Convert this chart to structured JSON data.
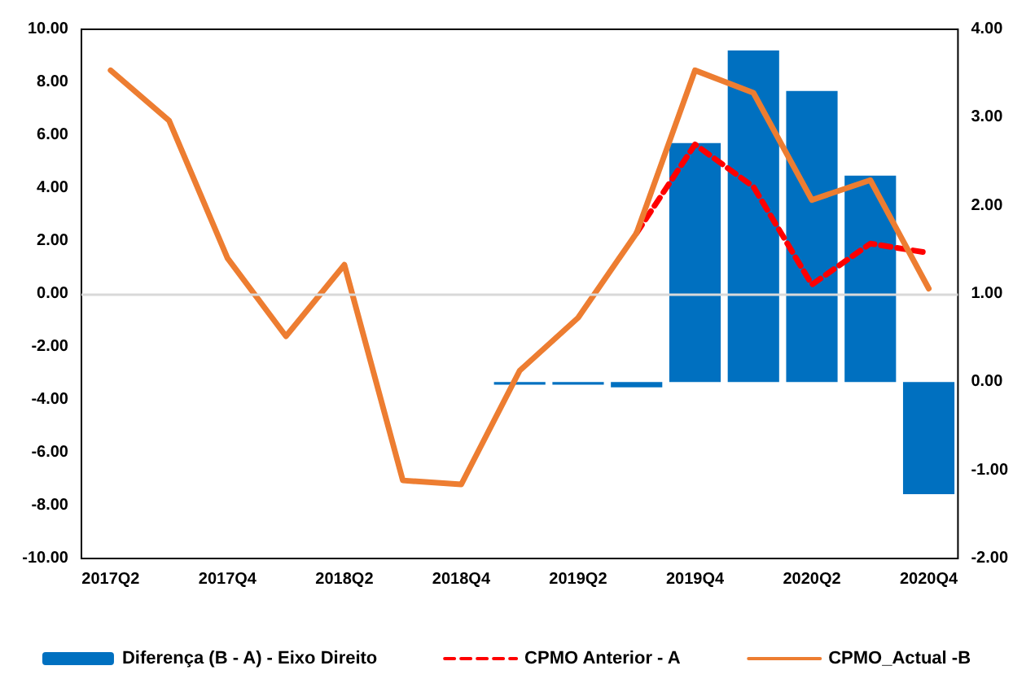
{
  "chart_data": {
    "type": "bar",
    "categories": [
      "2017Q2",
      null,
      "2017Q4",
      null,
      "2018Q2",
      null,
      "2018Q4",
      null,
      "2019Q2",
      null,
      "2019Q4",
      null,
      "2020Q2",
      null,
      "2020Q4"
    ],
    "series": [
      {
        "name": "Diferença (B - A) - Eixo Direito",
        "axis": "y2",
        "color": "#0070c0",
        "values": [
          null,
          null,
          null,
          null,
          null,
          null,
          null,
          -0.03,
          -0.03,
          -0.06,
          2.71,
          3.76,
          3.3,
          2.34,
          -1.27
        ]
      },
      {
        "name": "CPMO Anterior - A",
        "type": "line",
        "color": "#ff0000",
        "line_style": "dashed",
        "values": [
          null,
          null,
          null,
          null,
          null,
          null,
          null,
          null,
          null,
          2.3,
          5.65,
          4.05,
          0.35,
          1.9,
          1.55
        ]
      },
      {
        "name": "CPMO_Actual -B",
        "type": "line",
        "color": "#ed7d31",
        "line_style": "solid",
        "values": [
          8.45,
          6.55,
          1.35,
          -1.6,
          1.1,
          -7.05,
          -7.2,
          -2.9,
          -0.9,
          2.3,
          8.45,
          7.6,
          3.55,
          4.3,
          0.2
        ]
      }
    ],
    "ylim": [
      -10,
      10
    ],
    "yticks": [
      {
        "value": -10,
        "label": "-10.00"
      },
      {
        "value": -8,
        "label": "-8.00"
      },
      {
        "value": -6,
        "label": "-6.00"
      },
      {
        "value": -4,
        "label": "-4.00"
      },
      {
        "value": -2,
        "label": "-2.00"
      },
      {
        "value": 0,
        "label": "0.00"
      },
      {
        "value": 2,
        "label": "2.00"
      },
      {
        "value": 4,
        "label": "4.00"
      },
      {
        "value": 6,
        "label": "6.00"
      },
      {
        "value": 8,
        "label": "8.00"
      },
      {
        "value": 10,
        "label": "10.00"
      }
    ],
    "y2lim": [
      -2,
      4
    ],
    "y2ticks": [
      {
        "value": -2,
        "label": "-2.00"
      },
      {
        "value": -1,
        "label": "-1.00"
      },
      {
        "value": 0,
        "label": "0.00"
      },
      {
        "value": 1,
        "label": "1.00"
      },
      {
        "value": 2,
        "label": "2.00"
      },
      {
        "value": 3,
        "label": "3.00"
      },
      {
        "value": 4,
        "label": "4.00"
      }
    ],
    "ref_lines": [
      {
        "axis": "y",
        "value": 0,
        "color": "#d9d9d9"
      }
    ],
    "marker": "none",
    "grid": false,
    "legend": "bottom"
  }
}
